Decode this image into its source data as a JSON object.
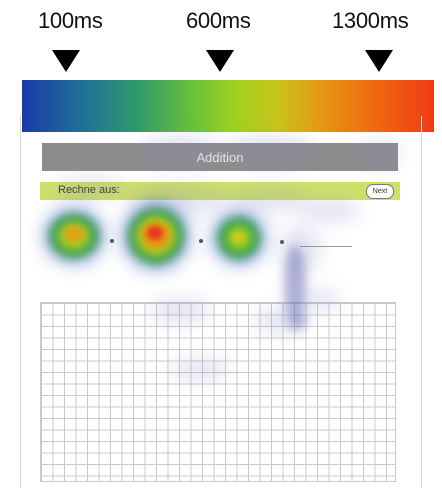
{
  "scale": {
    "ticks": [
      {
        "label": "100ms"
      },
      {
        "label": "600ms"
      },
      {
        "label": "1300ms"
      }
    ],
    "gradient_colors": [
      "#1a3aa8",
      "#6cc238",
      "#ee3c12"
    ]
  },
  "app": {
    "title": "Addition",
    "instruction": "Rechne aus:",
    "next_label": "Next"
  },
  "colors": {
    "header_bar": "#8c8c8c",
    "instruction_bar": "#cfe06a",
    "grid_line": "#c9c9c9"
  }
}
